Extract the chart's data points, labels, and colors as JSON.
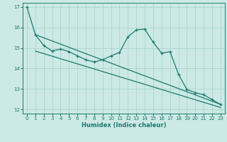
{
  "xlabel": "Humidex (Indice chaleur)",
  "xlim": [
    -0.5,
    23.5
  ],
  "ylim": [
    11.8,
    17.2
  ],
  "xticks": [
    0,
    1,
    2,
    3,
    4,
    5,
    6,
    7,
    8,
    9,
    10,
    11,
    12,
    13,
    14,
    15,
    16,
    17,
    18,
    19,
    20,
    21,
    22,
    23
  ],
  "yticks": [
    12,
    13,
    14,
    15,
    16,
    17
  ],
  "bg_color": "#cce9e5",
  "line_color": "#1a7a6e",
  "grid_color": "#aad4cf",
  "line1_x": [
    0,
    1,
    2,
    3,
    4,
    5,
    6,
    7,
    8,
    9,
    10,
    11,
    12,
    13,
    14,
    15,
    16,
    17,
    18,
    19,
    20,
    21,
    22,
    23
  ],
  "line1_y": [
    17.0,
    15.65,
    15.12,
    14.85,
    14.95,
    14.82,
    14.62,
    14.42,
    14.32,
    14.42,
    14.62,
    14.78,
    15.55,
    15.88,
    15.92,
    15.28,
    14.75,
    14.82,
    13.72,
    12.98,
    12.82,
    12.72,
    12.48,
    12.25
  ],
  "line2_x": [
    1,
    23
  ],
  "line2_y": [
    15.65,
    12.25
  ],
  "line3_x": [
    1,
    23
  ],
  "line3_y": [
    14.85,
    12.1
  ]
}
